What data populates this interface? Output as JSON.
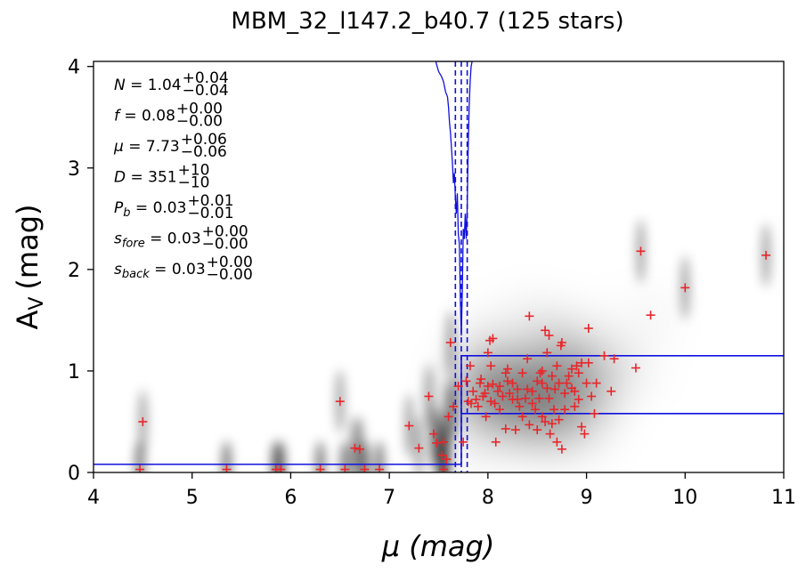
{
  "chart_data": {
    "type": "scatter",
    "title": "MBM_32_l147.2_b40.7 (125 stars)",
    "xlabel": "μ (mag)",
    "ylabel": "A",
    "ylabel_sub": "V",
    "ylabel_unit": "(mag)",
    "xlim": [
      4,
      11
    ],
    "ylim": [
      0,
      4.05
    ],
    "xticks": [
      "4",
      "5",
      "6",
      "7",
      "8",
      "9",
      "10",
      "11"
    ],
    "yticks": [
      "0",
      "1",
      "2",
      "3",
      "4"
    ],
    "colors": {
      "stars": "#e8262a",
      "model": "#1010e0",
      "density": "#000000"
    },
    "parameters": [
      {
        "sym": "N",
        "sub": "",
        "val": "1.04",
        "up": "+0.04",
        "lo": "−0.04"
      },
      {
        "sym": "f",
        "sub": "",
        "val": "0.08",
        "up": "+0.00",
        "lo": "−0.00"
      },
      {
        "sym": "μ",
        "sub": "",
        "val": "7.73",
        "up": "+0.06",
        "lo": "−0.06"
      },
      {
        "sym": "D",
        "sub": "",
        "val": "351",
        "up": "+10",
        "lo": "−10"
      },
      {
        "sym": "P",
        "sub": "b",
        "val": "0.03",
        "up": "+0.01",
        "lo": "−0.01"
      },
      {
        "sym": "s",
        "sub": "fore",
        "val": "0.03",
        "up": "+0.00",
        "lo": "−0.00"
      },
      {
        "sym": "s",
        "sub": "back",
        "val": "0.03",
        "up": "+0.00",
        "lo": "−0.00"
      }
    ],
    "distance_lines": [
      7.67,
      7.73,
      7.79
    ],
    "step_model": [
      {
        "x0": 4.0,
        "x1": 7.73,
        "y": 0.08
      },
      {
        "x0": 7.73,
        "x1": 11.0,
        "y": 0.58
      },
      {
        "x0": 7.73,
        "x1": 11.0,
        "y": 1.15
      }
    ],
    "pdf_curve": [
      [
        7.47,
        4.05
      ],
      [
        7.5,
        3.95
      ],
      [
        7.53,
        3.9
      ],
      [
        7.55,
        3.85
      ],
      [
        7.57,
        3.75
      ],
      [
        7.59,
        3.7
      ],
      [
        7.6,
        3.6
      ],
      [
        7.61,
        3.45
      ],
      [
        7.62,
        3.35
      ],
      [
        7.63,
        3.2
      ],
      [
        7.64,
        3.05
      ],
      [
        7.65,
        2.85
      ],
      [
        7.66,
        2.95
      ],
      [
        7.67,
        2.7
      ],
      [
        7.68,
        2.55
      ],
      [
        7.69,
        2.75
      ],
      [
        7.7,
        2.35
      ],
      [
        7.71,
        2.25
      ],
      [
        7.72,
        1.7
      ],
      [
        7.73,
        1.35
      ],
      [
        7.74,
        1.8
      ],
      [
        7.75,
        2.4
      ],
      [
        7.76,
        2.3
      ],
      [
        7.77,
        2.55
      ],
      [
        7.78,
        2.3
      ],
      [
        7.79,
        2.6
      ],
      [
        7.8,
        3.2
      ],
      [
        7.81,
        3.6
      ],
      [
        7.82,
        3.85
      ],
      [
        7.83,
        4.0
      ],
      [
        7.84,
        4.05
      ]
    ],
    "stars": [
      [
        4.5,
        0.5
      ],
      [
        6.5,
        0.7
      ],
      [
        6.65,
        0.24
      ],
      [
        6.7,
        0.23
      ],
      [
        7.2,
        0.46
      ],
      [
        7.3,
        0.24
      ],
      [
        7.4,
        0.75
      ],
      [
        7.45,
        0.38
      ],
      [
        7.48,
        0.29
      ],
      [
        7.53,
        0.17
      ],
      [
        7.55,
        0.3
      ],
      [
        7.58,
        0.13
      ],
      [
        7.6,
        0.55
      ],
      [
        7.62,
        1.28
      ],
      [
        7.65,
        0.65
      ],
      [
        7.7,
        0.85
      ],
      [
        7.75,
        0.3
      ],
      [
        7.78,
        0.9
      ],
      [
        7.8,
        0.7
      ],
      [
        7.82,
        1.05
      ],
      [
        7.83,
        0.68
      ],
      [
        7.85,
        0.8
      ],
      [
        7.88,
        0.72
      ],
      [
        7.9,
        0.65
      ],
      [
        7.92,
        0.88
      ],
      [
        7.95,
        0.75
      ],
      [
        7.97,
        0.78
      ],
      [
        8.0,
        1.18
      ],
      [
        8.0,
        0.85
      ],
      [
        8.02,
        1.3
      ],
      [
        8.03,
        0.7
      ],
      [
        8.03,
        1.05
      ],
      [
        8.05,
        1.32
      ],
      [
        8.05,
        0.87
      ],
      [
        8.07,
        0.68
      ],
      [
        8.08,
        0.3
      ],
      [
        8.1,
        0.8
      ],
      [
        8.12,
        0.85
      ],
      [
        8.15,
        0.75
      ],
      [
        8.18,
        0.43
      ],
      [
        8.2,
        0.9
      ],
      [
        8.2,
        1.02
      ],
      [
        8.22,
        0.78
      ],
      [
        8.25,
        0.88
      ],
      [
        8.25,
        0.72
      ],
      [
        8.28,
        0.42
      ],
      [
        8.3,
        0.82
      ],
      [
        8.32,
        0.65
      ],
      [
        8.35,
        0.98
      ],
      [
        8.38,
        0.73
      ],
      [
        8.4,
        0.82
      ],
      [
        8.42,
        1.54
      ],
      [
        8.42,
        0.47
      ],
      [
        8.45,
        0.68
      ],
      [
        8.48,
        0.62
      ],
      [
        8.5,
        0.9
      ],
      [
        8.52,
        0.73
      ],
      [
        8.53,
        0.98
      ],
      [
        8.55,
        0.88
      ],
      [
        8.55,
        0.55
      ],
      [
        8.58,
        1.4
      ],
      [
        8.58,
        0.5
      ],
      [
        8.6,
        0.83
      ],
      [
        8.62,
        1.35
      ],
      [
        8.62,
        0.73
      ],
      [
        8.63,
        0.38
      ],
      [
        8.65,
        0.95
      ],
      [
        8.68,
        0.82
      ],
      [
        8.7,
        1.05
      ],
      [
        8.7,
        0.3
      ],
      [
        8.72,
        0.52
      ],
      [
        8.72,
        0.88
      ],
      [
        8.74,
        1.25
      ],
      [
        8.75,
        1.28
      ],
      [
        8.75,
        0.23
      ],
      [
        8.78,
        0.78
      ],
      [
        8.8,
        0.88
      ],
      [
        8.82,
        0.95
      ],
      [
        8.85,
        0.83
      ],
      [
        8.88,
        0.65
      ],
      [
        8.9,
        1.05
      ],
      [
        8.92,
        0.72
      ],
      [
        8.95,
        1.08
      ],
      [
        8.95,
        0.45
      ],
      [
        8.98,
        0.38
      ],
      [
        9.0,
        0.88
      ],
      [
        9.02,
        1.42
      ],
      [
        9.02,
        1.08
      ],
      [
        9.05,
        0.75
      ],
      [
        9.1,
        0.88
      ],
      [
        9.18,
        1.15
      ],
      [
        9.25,
        0.8
      ],
      [
        9.28,
        1.12
      ],
      [
        9.5,
        1.03
      ],
      [
        9.55,
        2.18
      ],
      [
        9.65,
        1.55
      ],
      [
        10.0,
        1.82
      ],
      [
        10.82,
        2.14
      ],
      [
        4.47,
        0.03
      ],
      [
        5.35,
        0.03
      ],
      [
        5.85,
        0.03
      ],
      [
        5.9,
        0.03
      ],
      [
        6.3,
        0.03
      ],
      [
        6.55,
        0.03
      ],
      [
        6.75,
        0.03
      ],
      [
        6.9,
        0.03
      ],
      [
        7.55,
        0.03
      ],
      [
        8.3,
        0.72
      ],
      [
        8.45,
        0.8
      ],
      [
        8.55,
        1.0
      ],
      [
        8.67,
        0.62
      ],
      [
        8.85,
        1.02
      ],
      [
        8.12,
        0.62
      ],
      [
        7.98,
        0.55
      ],
      [
        8.6,
        1.18
      ],
      [
        8.92,
        0.98
      ],
      [
        8.35,
        0.55
      ],
      [
        8.5,
        0.42
      ],
      [
        9.08,
        0.58
      ],
      [
        8.18,
        0.98
      ],
      [
        8.78,
        0.62
      ],
      [
        8.65,
        0.48
      ],
      [
        7.93,
        0.92
      ],
      [
        8.4,
        1.12
      ],
      [
        8.88,
        0.8
      ]
    ]
  }
}
